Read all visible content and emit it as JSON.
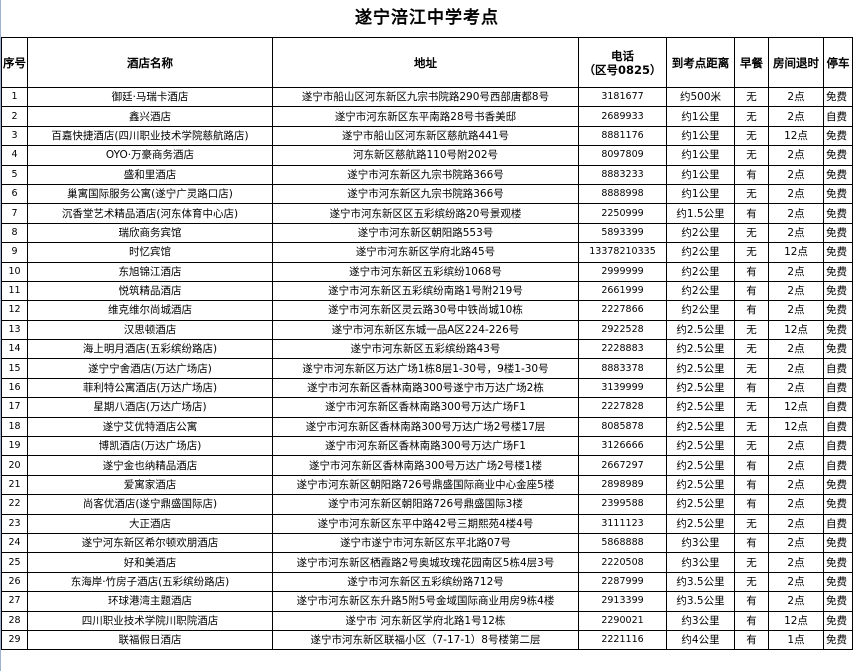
{
  "title": "遂宁涪江中学考点",
  "headers": {
    "index": "序号",
    "name": "酒店名称",
    "address": "地址",
    "phone": "电话",
    "phone_area": "（区号0825）",
    "distance": "到考点距离",
    "breakfast": "早餐",
    "checkout": "房间退时",
    "parking": "停车"
  },
  "rows": [
    {
      "index": "1",
      "name": "御廷·马瑞卡酒店",
      "address": "遂宁市船山区河东新区九宗书院路290号西部唐都8号",
      "phone": "3181677",
      "distance": "约500米",
      "breakfast": "无",
      "checkout": "2点",
      "parking": "免费"
    },
    {
      "index": "2",
      "name": "鑫兴酒店",
      "address": "遂宁市河东新区东平南路28号书香美邸",
      "phone": "2689933",
      "distance": "约1公里",
      "breakfast": "无",
      "checkout": "2点",
      "parking": "自费"
    },
    {
      "index": "3",
      "name": "百嘉快捷酒店(四川职业技术学院慈航路店)",
      "address": "遂宁市船山区河东新区慈航路441号",
      "phone": "8881176",
      "distance": "约1公里",
      "breakfast": "无",
      "checkout": "12点",
      "parking": "免费"
    },
    {
      "index": "4",
      "name": "OYO·万豪商务酒店",
      "address": "河东新区慈航路110号附202号",
      "phone": "8097809",
      "distance": "约1公里",
      "breakfast": "无",
      "checkout": "2点",
      "parking": "免费"
    },
    {
      "index": "5",
      "name": "盛和里酒店",
      "address": "遂宁市河东新区九宗书院路366号",
      "phone": "8883233",
      "distance": "约1公里",
      "breakfast": "有",
      "checkout": "2点",
      "parking": "免费"
    },
    {
      "index": "6",
      "name": "巢寓国际服务公寓(遂宁广灵路口店)",
      "address": "遂宁市河东新区九宗书院路366号",
      "phone": "8888998",
      "distance": "约1公里",
      "breakfast": "无",
      "checkout": "2点",
      "parking": "免费"
    },
    {
      "index": "7",
      "name": "沉香堂艺术精品酒店(河东体育中心店)",
      "address": "遂宁市河东新区区五彩缤纷路20号景观楼",
      "phone": "2250999",
      "distance": "约1.5公里",
      "breakfast": "有",
      "checkout": "2点",
      "parking": "免费"
    },
    {
      "index": "8",
      "name": "瑞欣商务宾馆",
      "address": "遂宁市河东新区朝阳路553号",
      "phone": "5893399",
      "distance": "约2公里",
      "breakfast": "无",
      "checkout": "2点",
      "parking": "免费"
    },
    {
      "index": "9",
      "name": "时忆宾馆",
      "address": "遂宁市河东新区学府北路45号",
      "phone": "13378210335",
      "distance": "约2公里",
      "breakfast": "无",
      "checkout": "12点",
      "parking": "免费"
    },
    {
      "index": "10",
      "name": "东旭锦江酒店",
      "address": "遂宁市河东新区五彩缤纷1068号",
      "phone": "2999999",
      "distance": "约2公里",
      "breakfast": "有",
      "checkout": "2点",
      "parking": "免费"
    },
    {
      "index": "11",
      "name": "悦筑精品酒店",
      "address": "遂宁市河东新区五彩缤纷南路1号附219号",
      "phone": "2661999",
      "distance": "约2公里",
      "breakfast": "有",
      "checkout": "2点",
      "parking": "免费"
    },
    {
      "index": "12",
      "name": "维克维尔尚城酒店",
      "address": "遂宁市河东新区灵云路30号中铁尚城10栋",
      "phone": "2227866",
      "distance": "约2公里",
      "breakfast": "有",
      "checkout": "2点",
      "parking": "免费"
    },
    {
      "index": "13",
      "name": "汉思顿酒店",
      "address": "遂宁市河东新区东城一品A区224-226号",
      "phone": "2922528",
      "distance": "约2.5公里",
      "breakfast": "无",
      "checkout": "12点",
      "parking": "免费"
    },
    {
      "index": "14",
      "name": "海上明月酒店(五彩缤纷路店)",
      "address": "遂宁市河东新区五彩缤纷路43号",
      "phone": "2228883",
      "distance": "约2.5公里",
      "breakfast": "无",
      "checkout": "2点",
      "parking": "免费"
    },
    {
      "index": "15",
      "name": "遂宁宁舍酒店(万达广场店)",
      "address": "遂宁市河东新区万达广场1栋8层1-30号，9楼1-30号",
      "phone": "8883378",
      "distance": "约2.5公里",
      "breakfast": "无",
      "checkout": "2点",
      "parking": "自费"
    },
    {
      "index": "16",
      "name": "菲利特公寓酒店(万达广场店)",
      "address": "遂宁市河东新区香林南路300号遂宁市万达广场2栋",
      "phone": "3139999",
      "distance": "约2.5公里",
      "breakfast": "有",
      "checkout": "2点",
      "parking": "自费"
    },
    {
      "index": "17",
      "name": "星期八酒店(万达广场店)",
      "address": "遂宁市河东新区香林南路300号万达广场F1",
      "phone": "2227828",
      "distance": "约2.5公里",
      "breakfast": "无",
      "checkout": "12点",
      "parking": "自费"
    },
    {
      "index": "18",
      "name": "遂宁艾优特酒店公寓",
      "address": "遂宁市河东新区香林南路300号万达广场2号楼17层",
      "phone": "8085878",
      "distance": "约2.5公里",
      "breakfast": "无",
      "checkout": "12点",
      "parking": "自费"
    },
    {
      "index": "19",
      "name": "博凯酒店(万达广场店)",
      "address": "遂宁市河东新区香林南路300号万达广场F1",
      "phone": "3126666",
      "distance": "约2.5公里",
      "breakfast": "无",
      "checkout": "2点",
      "parking": "自费"
    },
    {
      "index": "20",
      "name": "遂宁金也纳精品酒店",
      "address": "遂宁市河东新区香林南路300号万达广场2号楼1楼",
      "phone": "2667297",
      "distance": "约2.5公里",
      "breakfast": "有",
      "checkout": "2点",
      "parking": "自费"
    },
    {
      "index": "21",
      "name": "爱寓家酒店",
      "address": "遂宁市河东新区朝阳路726号鼎盛国际商业中心金座5楼",
      "phone": "2898989",
      "distance": "约2.5公里",
      "breakfast": "有",
      "checkout": "2点",
      "parking": "免费"
    },
    {
      "index": "22",
      "name": "尚客优酒店(遂宁鼎盛国际店)",
      "address": "遂宁市河东新区朝阳路726号鼎盛国际3楼",
      "phone": "2399588",
      "distance": "约2.5公里",
      "breakfast": "有",
      "checkout": "2点",
      "parking": "免费"
    },
    {
      "index": "23",
      "name": "大正酒店",
      "address": "遂宁市河东新区东平中路42号三期熙苑4楼4号",
      "phone": "3111123",
      "distance": "约2.5公里",
      "breakfast": "无",
      "checkout": "2点",
      "parking": "自费"
    },
    {
      "index": "24",
      "name": "遂宁河东新区希尔顿欢朋酒店",
      "address": "遂宁市遂宁市河东新区东平北路07号",
      "phone": "5868888",
      "distance": "约3公里",
      "breakfast": "有",
      "checkout": "2点",
      "parking": "免费"
    },
    {
      "index": "25",
      "name": "好和美酒店",
      "address": "遂宁市河东新区栖霞路2号奥城玫瑰花园南区5栋4层3号",
      "phone": "2220508",
      "distance": "约3公里",
      "breakfast": "无",
      "checkout": "2点",
      "parking": "免费"
    },
    {
      "index": "26",
      "name": "东海岸·竹房子酒店(五彩缤纷路店)",
      "address": "遂宁市河东新区五彩缤纷路712号",
      "phone": "2287999",
      "distance": "约3.5公里",
      "breakfast": "无",
      "checkout": "2点",
      "parking": "免费"
    },
    {
      "index": "27",
      "name": "环球港湾主题酒店",
      "address": "遂宁市河东新区东升路5附5号金域国际商业用房9栋4楼",
      "phone": "2913399",
      "distance": "约3.5公里",
      "breakfast": "有",
      "checkout": "2点",
      "parking": "免费"
    },
    {
      "index": "28",
      "name": "四川职业技术学院川职院酒店",
      "address": "遂宁市 河东新区学府北路1号12栋",
      "phone": "2290021",
      "distance": "约3公里",
      "breakfast": "有",
      "checkout": "12点",
      "parking": "免费"
    },
    {
      "index": "29",
      "name": "联福假日酒店",
      "address": "遂宁市河东新区联福小区（7-17-1）8号楼第二层",
      "phone": "2221116",
      "distance": "约4公里",
      "breakfast": "有",
      "checkout": "1点",
      "parking": "免费"
    }
  ]
}
